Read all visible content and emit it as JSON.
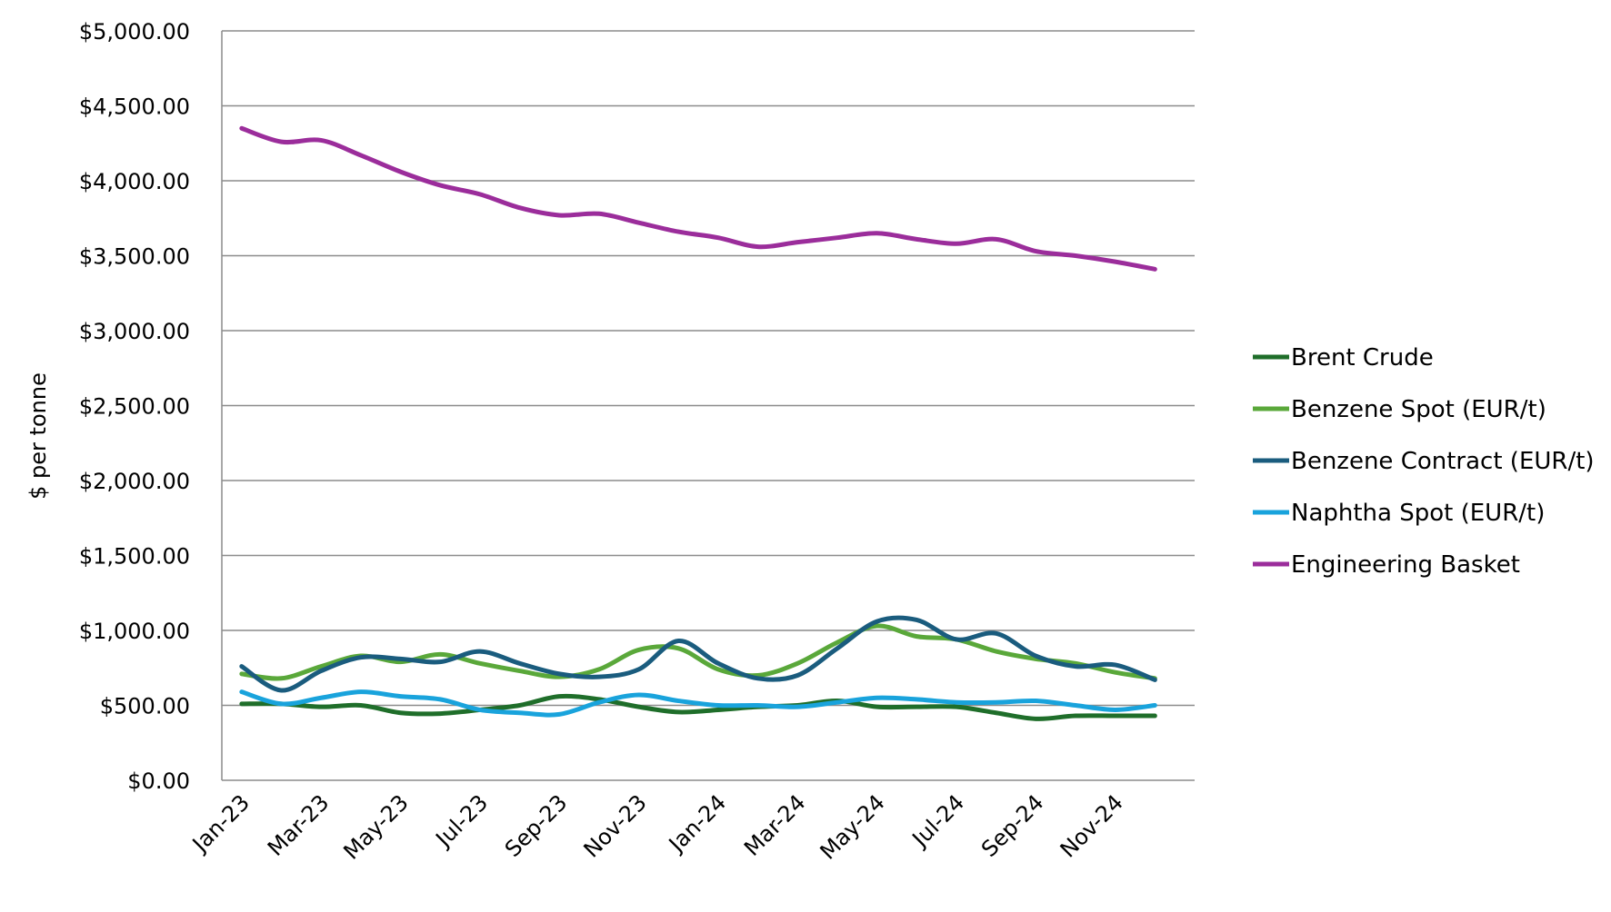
{
  "chart_data": {
    "type": "line",
    "title": "",
    "xlabel": "",
    "ylabel": "$ per tonne",
    "ylim": [
      0,
      5000
    ],
    "yticks": [
      "$0.00",
      "$500.00",
      "$1,000.00",
      "$1,500.00",
      "$2,000.00",
      "$2,500.00",
      "$3,000.00",
      "$3,500.00",
      "$4,000.00",
      "$4,500.00",
      "$5,000.00"
    ],
    "x": [
      "Jan-23",
      "Feb-23",
      "Mar-23",
      "Apr-23",
      "May-23",
      "Jun-23",
      "Jul-23",
      "Aug-23",
      "Sep-23",
      "Oct-23",
      "Nov-23",
      "Dec-23",
      "Jan-24",
      "Feb-24",
      "Mar-24",
      "Apr-24",
      "May-24",
      "Jun-24",
      "Jul-24",
      "Aug-24",
      "Sep-24",
      "Oct-24",
      "Nov-24",
      "Dec-24"
    ],
    "xtick_labels": [
      "Jan-23",
      "Mar-23",
      "May-23",
      "Jul-23",
      "Sep-23",
      "Nov-23",
      "Jan-24",
      "Mar-24",
      "May-24",
      "Jul-24",
      "Sep-24",
      "Nov-24"
    ],
    "legend_position": "right",
    "grid": true,
    "series": [
      {
        "name": "Brent Crude",
        "color": "#1f6e2a",
        "values": [
          510,
          510,
          490,
          500,
          450,
          445,
          470,
          500,
          560,
          540,
          490,
          455,
          470,
          490,
          500,
          530,
          490,
          490,
          490,
          450,
          410,
          430,
          430,
          430
        ]
      },
      {
        "name": "Benzene Spot (EUR/t)",
        "color": "#5aa83a",
        "values": [
          710,
          680,
          760,
          830,
          790,
          840,
          780,
          730,
          690,
          740,
          870,
          880,
          740,
          700,
          780,
          920,
          1030,
          960,
          940,
          860,
          810,
          780,
          720,
          680
        ]
      },
      {
        "name": "Benzene Contract (EUR/t)",
        "color": "#1a5c7e",
        "values": [
          760,
          600,
          730,
          820,
          810,
          790,
          860,
          780,
          710,
          690,
          740,
          930,
          780,
          680,
          700,
          880,
          1060,
          1070,
          940,
          980,
          830,
          760,
          770,
          670
        ]
      },
      {
        "name": "Naphtha Spot (EUR/t)",
        "color": "#19a3dc",
        "values": [
          590,
          510,
          550,
          590,
          560,
          540,
          470,
          450,
          440,
          520,
          570,
          530,
          500,
          500,
          490,
          520,
          550,
          540,
          520,
          520,
          530,
          500,
          470,
          500
        ]
      },
      {
        "name": "Engineering Basket",
        "color": "#9b2d9b",
        "values": [
          4350,
          4260,
          4270,
          4170,
          4060,
          3970,
          3910,
          3820,
          3770,
          3780,
          3720,
          3660,
          3620,
          3560,
          3590,
          3620,
          3650,
          3610,
          3580,
          3610,
          3530,
          3500,
          3460,
          3410
        ]
      }
    ]
  }
}
